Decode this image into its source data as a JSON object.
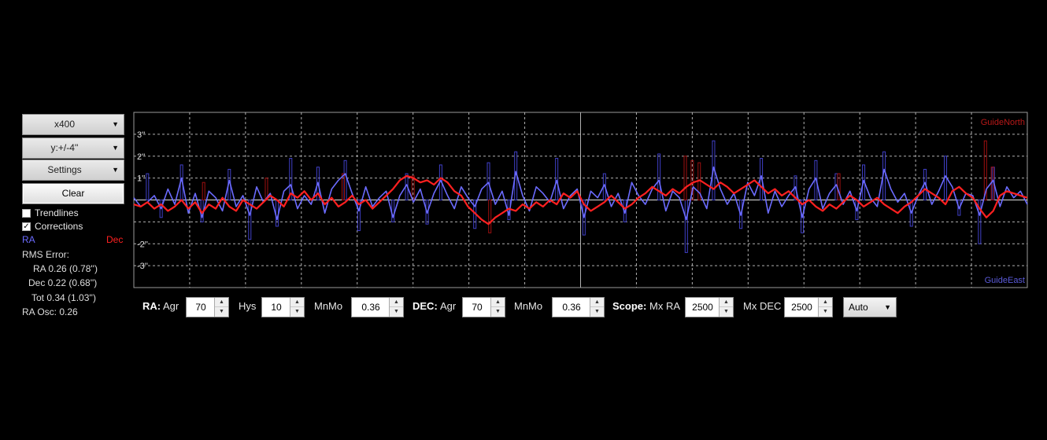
{
  "sidebar": {
    "x_scale": "x400",
    "y_scale": "y:+/-4''",
    "settings": "Settings",
    "clear": "Clear",
    "trendlines": "Trendlines",
    "corrections": "Corrections",
    "trendlines_checked": false,
    "corrections_checked": true,
    "legend_ra": "RA",
    "legend_dec": "Dec",
    "rms_title": "RMS Error:",
    "rms_ra": "RA 0.26 (0.78'')",
    "rms_dec": "Dec 0.22 (0.68'')",
    "rms_tot": "Tot 0.34 (1.03'')",
    "ra_osc": "RA Osc: 0.26"
  },
  "colors": {
    "ra": "#6b6bff",
    "dec": "#ff2020",
    "ra_corr": "#4040c8",
    "dec_corr": "#a01010",
    "grid": "#b0b0b0"
  },
  "controls": {
    "ra_label": "RA:",
    "agr_label": "Agr",
    "ra_agr": "70",
    "hys_label": "Hys",
    "ra_hys": "10",
    "mnmo_label": "MnMo",
    "ra_mnmo": "0.36",
    "dec_label": "DEC:",
    "dec_agr": "70",
    "dec_mnmo": "0.36",
    "scope_label": "Scope:",
    "mxra_label": "Mx RA",
    "mx_ra": "2500",
    "mxdec_label": "Mx DEC",
    "mx_dec": "2500",
    "mode": "Auto"
  },
  "chart_data": {
    "type": "line",
    "ylim": [
      -4,
      4
    ],
    "x_divisions": 16,
    "y_tick_labels": [
      "3''",
      "2''",
      "1''",
      "-2''",
      "-3''"
    ],
    "y_tick_values": [
      3,
      2,
      1,
      -2,
      -3
    ],
    "corner_top": "GuideNorth",
    "corner_bottom": "GuideEast",
    "series": [
      {
        "key": "ra",
        "values": [
          0.1,
          -0.3,
          -0.1,
          0.2,
          -0.4,
          0.5,
          -0.2,
          1.0,
          -0.6,
          0.3,
          -0.8,
          0.4,
          0.1,
          -0.5,
          0.9,
          -0.3,
          0.2,
          -0.7,
          0.6,
          -0.1,
          0.3,
          -0.9,
          0.4,
          0.7,
          -0.4,
          0.2,
          -0.2,
          0.8,
          -0.6,
          0.5,
          0.9,
          1.2,
          0.3,
          -0.5,
          0.6,
          -0.3,
          0.1,
          0.4,
          -0.8,
          0.2,
          0.7,
          -0.1,
          0.5,
          -0.6,
          0.3,
          0.9,
          0.2,
          -0.4,
          0.6,
          0.1,
          -0.3,
          0.5,
          0.8,
          -0.2,
          0.4,
          -0.7,
          1.3,
          0.2,
          -0.5,
          0.6,
          0.3,
          -0.1,
          0.9,
          -0.4,
          0.2,
          0.5,
          -0.8,
          0.4,
          0.1,
          0.7,
          -0.3,
          0.3,
          -0.6,
          0.8,
          0.2,
          -0.2,
          0.5,
          0.9,
          -0.5,
          0.4,
          0.1,
          -0.9,
          0.6,
          0.3,
          -0.4,
          1.5,
          0.5,
          -0.2,
          0.3,
          -0.7,
          0.8,
          0.2,
          1.1,
          -0.6,
          0.4,
          -0.3,
          0.2,
          0.6,
          -0.8,
          0.5,
          1.0,
          -0.4,
          0.3,
          0.7,
          -0.2,
          0.4,
          -0.5,
          0.9,
          0.1,
          -0.3,
          1.4,
          0.5,
          -0.1,
          0.3,
          -0.6,
          0.2,
          0.8,
          -0.2,
          0.4,
          1.1,
          0.6,
          -0.4,
          0.3,
          0.2,
          -0.7,
          0.5,
          0.9,
          -0.3,
          0.6,
          0.1,
          0.4,
          -0.2
        ]
      },
      {
        "key": "dec",
        "values": [
          -0.2,
          -0.3,
          -0.1,
          -0.4,
          -0.2,
          -0.5,
          -0.3,
          0.0,
          -0.4,
          -0.1,
          -0.6,
          -0.2,
          -0.4,
          0.1,
          -0.3,
          -0.5,
          0.0,
          -0.2,
          -0.4,
          -0.1,
          0.2,
          0.0,
          -0.3,
          0.3,
          0.1,
          0.4,
          0.0,
          0.3,
          -0.2,
          0.1,
          -0.3,
          -0.1,
          0.2,
          -0.2,
          0.0,
          -0.4,
          -0.1,
          0.2,
          0.5,
          0.9,
          1.1,
          1.0,
          0.8,
          0.9,
          0.7,
          1.0,
          0.8,
          0.4,
          0.2,
          -0.3,
          -0.6,
          -0.9,
          -1.1,
          -0.8,
          -0.6,
          -0.4,
          -0.5,
          -0.2,
          -0.4,
          -0.1,
          -0.3,
          0.0,
          -0.2,
          0.3,
          0.1,
          0.4,
          -0.2,
          -0.5,
          -0.3,
          -0.1,
          0.2,
          -0.1,
          -0.4,
          -0.2,
          0.1,
          0.3,
          0.6,
          0.4,
          0.2,
          0.5,
          0.3,
          0.6,
          0.8,
          0.9,
          0.7,
          0.5,
          0.8,
          0.6,
          0.3,
          0.5,
          0.7,
          0.9,
          0.6,
          0.3,
          0.5,
          0.2,
          0.4,
          0.1,
          -0.2,
          0.0,
          -0.3,
          -0.5,
          -0.2,
          -0.4,
          -0.1,
          0.2,
          0.0,
          -0.3,
          -0.1,
          0.1,
          -0.2,
          -0.4,
          -0.6,
          -0.3,
          -0.1,
          0.2,
          0.5,
          0.3,
          0.1,
          -0.2,
          0.4,
          0.6,
          0.3,
          0.1,
          -0.4,
          -0.8,
          -0.5,
          0.2,
          0.4,
          0.3,
          0.2,
          0.1
        ]
      },
      {
        "key": "ra_corr",
        "values": [
          0,
          0,
          1.2,
          0,
          -0.8,
          0,
          0,
          1.6,
          0,
          0,
          -1.0,
          0,
          0,
          0,
          1.4,
          0,
          0,
          -1.8,
          0,
          0,
          0,
          -1.2,
          0,
          1.9,
          0,
          0,
          0,
          1.5,
          0,
          0,
          0,
          1.8,
          0,
          -1.4,
          0,
          0,
          0,
          0,
          -1.0,
          0,
          1.2,
          0,
          0,
          -1.1,
          0,
          1.6,
          0,
          0,
          0,
          0,
          -1.3,
          0,
          1.7,
          0,
          0,
          -0.9,
          2.2,
          0,
          0,
          0,
          0,
          0,
          1.9,
          0,
          0,
          0,
          -1.6,
          0,
          0,
          1.2,
          0,
          0,
          -1.0,
          0,
          0,
          0,
          0,
          2.1,
          0,
          0,
          0,
          -2.4,
          0,
          0,
          0,
          2.7,
          0,
          0,
          0,
          -1.3,
          0,
          0,
          1.9,
          0,
          0,
          0,
          0,
          1.1,
          -1.5,
          0,
          1.8,
          0,
          0,
          1.2,
          0,
          0,
          -0.9,
          1.6,
          0,
          0,
          2.2,
          0,
          0,
          0,
          -1.2,
          0,
          1.4,
          0,
          0,
          2.0,
          0,
          -0.7,
          0,
          0,
          -2.0,
          0,
          1.5,
          0,
          0,
          0,
          0,
          0
        ]
      },
      {
        "key": "dec_corr",
        "values": [
          0,
          0,
          0,
          0,
          0,
          0,
          0,
          0,
          0,
          0,
          0.8,
          0,
          0,
          0,
          0,
          0,
          0,
          0,
          0,
          1.0,
          0,
          0,
          0,
          0,
          0,
          0,
          0,
          0,
          0,
          0,
          1.2,
          0,
          0,
          0,
          0,
          0,
          0,
          0,
          0,
          0,
          1.1,
          0,
          0,
          0,
          0,
          0,
          0,
          0,
          0,
          0,
          0,
          -1.5,
          0,
          0,
          0,
          0,
          0,
          0,
          0,
          0,
          0,
          0,
          0,
          0,
          0,
          0,
          0,
          0,
          0,
          0,
          0,
          0,
          0,
          0,
          0,
          0,
          0,
          0,
          0,
          2.0,
          1.8,
          1.7,
          0,
          0,
          0,
          0,
          0,
          0,
          0,
          0,
          0,
          0,
          0,
          0,
          0,
          0,
          0,
          0,
          0,
          0,
          0,
          1.2,
          0,
          0,
          0,
          0,
          0,
          0,
          0,
          0,
          0,
          0,
          0,
          0,
          0,
          0,
          0,
          0,
          0,
          0,
          0,
          0,
          2.7,
          1.5,
          0,
          0,
          0,
          0,
          0
        ]
      }
    ]
  }
}
